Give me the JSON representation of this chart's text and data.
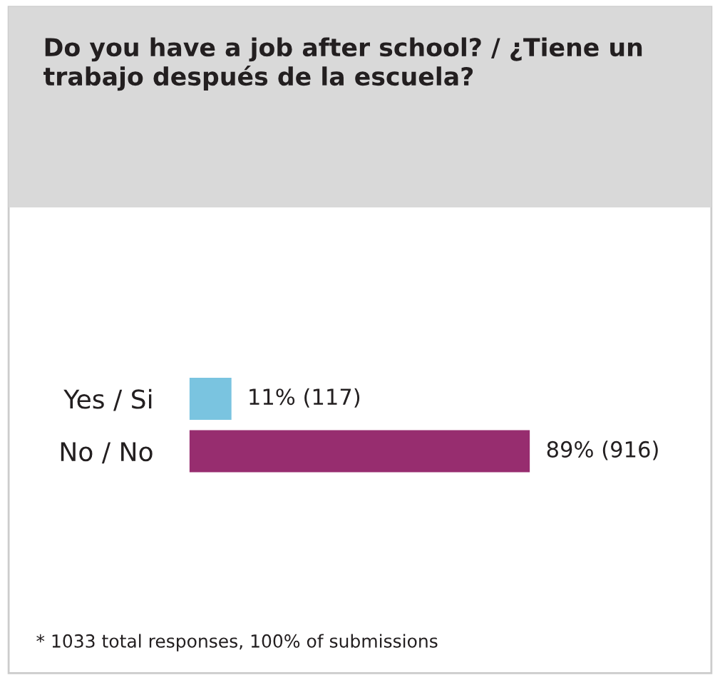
{
  "chart_data": {
    "type": "bar",
    "orientation": "horizontal",
    "title": "Do you have a job after school? / ¿Tiene un trabajo después de la escuela?",
    "categories": [
      "Yes / Si",
      "No / No"
    ],
    "values": [
      11,
      89
    ],
    "colors": [
      "#7ac4e0",
      "#972d6f"
    ],
    "value_labels": [
      "11% (117)",
      "89% (916)"
    ],
    "tick_labels": "y",
    "grid": false,
    "legend": false,
    "annotations": [
      "* 1033 total responses, 100% of submissions"
    ]
  }
}
